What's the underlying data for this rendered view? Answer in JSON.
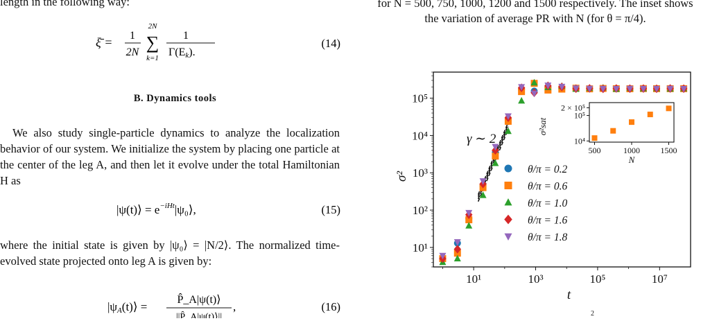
{
  "left": {
    "top_fragment": "length in the following way:",
    "eq14": {
      "lhs": "ξ̄ = ",
      "frac1_num": "1",
      "frac1_den": "2N",
      "sum_top": "2N",
      "sum_sym": "∑",
      "sum_bot": "k=1",
      "frac2_num": "1",
      "frac2_den": "Γ(E",
      "frac2_den_sub": "k",
      "frac2_den_close": ").",
      "number": "(14)"
    },
    "section_title": "B.   Dynamics tools",
    "para1": "We also study single-particle dynamics to analyze the localization behavior of our system. We initialize the system by placing one particle at the center of the leg A, and then let it evolve under the total Hamiltonian H as",
    "eq15": {
      "text": "|ψ(t)⟩ = e",
      "exp": "−iHt",
      "rest": "|ψ₀⟩,",
      "number": "(15)"
    },
    "para2": "where the initial state is given by |ψ₀⟩ = |N/2⟩. The normalized time-evolved state projected onto leg A is given by:",
    "eq16": {
      "lhs": "|ψ",
      "lhs_sub": "A",
      "lhs_rest": "(t)⟩ = ",
      "num": "P̂_A|ψ(t)⟩",
      "den": "||P̂_A|ψ(t)⟩||",
      "tail": ",",
      "number": "(16)"
    }
  },
  "right": {
    "caption_top": "for N = 500, 750, 1000, 1200 and 1500 respectively. The inset shows the variation of average PR with N (for θ = π/4).",
    "caption_bottom_fragment": "2"
  },
  "chart_data": [
    {
      "type": "scatter",
      "xscale": "log",
      "yscale": "log",
      "xlabel": "t",
      "ylabel": "σ²",
      "xticks": [
        "10¹",
        "10³",
        "10⁵",
        "10⁷"
      ],
      "yticks": [
        "10¹",
        "10²",
        "10³",
        "10⁴",
        "10⁵"
      ],
      "xlim": [
        0.5,
        100000000
      ],
      "ylim": [
        3,
        500000
      ],
      "annotation": "γ ∼ 2",
      "legend_position": "center",
      "x": [
        1,
        3,
        7,
        20,
        50,
        130,
        350,
        900,
        2500,
        7000,
        20000,
        55000,
        150000,
        400000,
        1100000,
        3000000,
        8000000,
        22000000,
        60000000
      ],
      "series": [
        {
          "name": "θ/π = 0.2",
          "color": "#1f77b4",
          "marker": "circle",
          "values": [
            5,
            13,
            60,
            450,
            3500,
            28000,
            170000,
            155000,
            200000,
            190000,
            185000,
            180000,
            180000,
            182000,
            178000,
            181000,
            180000,
            179000,
            180000
          ]
        },
        {
          "name": "θ/π = 0.6",
          "color": "#ff7f0e",
          "marker": "square",
          "values": [
            5,
            7,
            55,
            400,
            2800,
            24000,
            150000,
            250000,
            165000,
            175000,
            185000,
            178000,
            182000,
            180000,
            179000,
            181000,
            180000,
            180000,
            180000
          ]
        },
        {
          "name": "θ/π = 1.0",
          "color": "#2ca02c",
          "marker": "triangle",
          "values": [
            4,
            5,
            38,
            250,
            1800,
            13000,
            85000,
            260000,
            195000,
            210000,
            175000,
            185000,
            190000,
            175000,
            185000,
            180000,
            182000,
            178000,
            181000
          ]
        },
        {
          "name": "θ/π = 1.6",
          "color": "#d62728",
          "marker": "diamond",
          "values": [
            5,
            9,
            75,
            500,
            4000,
            30000,
            190000,
            140000,
            215000,
            200000,
            180000,
            183000,
            178000,
            182000,
            180000,
            181000,
            179000,
            182000,
            180000
          ]
        },
        {
          "name": "θ/π = 1.8",
          "color": "#9467bd",
          "marker": "triangle-down",
          "values": [
            6,
            14,
            85,
            600,
            5000,
            33000,
            200000,
            135000,
            220000,
            205000,
            185000,
            181000,
            180000,
            179000,
            181000,
            180000,
            180000,
            181000,
            179000
          ]
        }
      ]
    },
    {
      "type": "scatter",
      "xscale": "linear",
      "yscale": "log",
      "xlabel": "N",
      "ylabel": "σ²sat",
      "xticks": [
        "500",
        "1000",
        "1500"
      ],
      "yticks": [
        "10⁴",
        "10⁵",
        "2 × 10⁵"
      ],
      "xlim": [
        430,
        1570
      ],
      "ylim": [
        9000,
        320000
      ],
      "x": [
        500,
        750,
        1000,
        1250,
        1500
      ],
      "series": [
        {
          "color": "#ff7f0e",
          "marker": "square",
          "values": [
            13000,
            25000,
            55000,
            110000,
            190000
          ]
        }
      ]
    }
  ]
}
